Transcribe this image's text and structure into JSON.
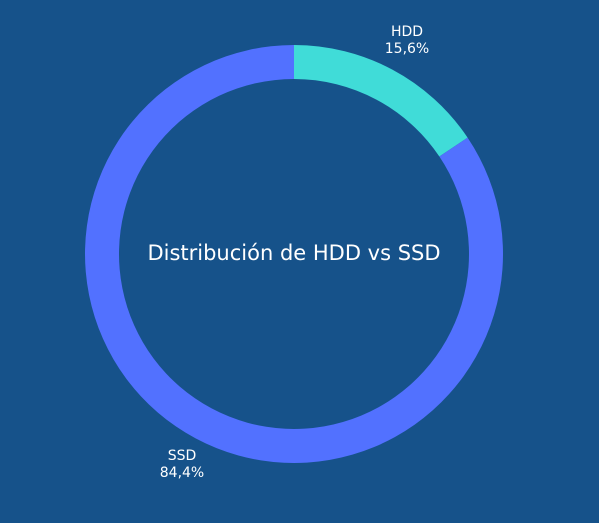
{
  "chart_data": {
    "type": "pie",
    "title": "Distribución de HDD vs SSD",
    "categories": [
      "HDD",
      "SSD"
    ],
    "values": [
      15.6,
      84.4
    ],
    "value_labels": [
      "15,6%",
      "84,4%"
    ],
    "colors": [
      "#40dcd8",
      "#5271ff"
    ],
    "background": "#16528a",
    "donut": true
  }
}
